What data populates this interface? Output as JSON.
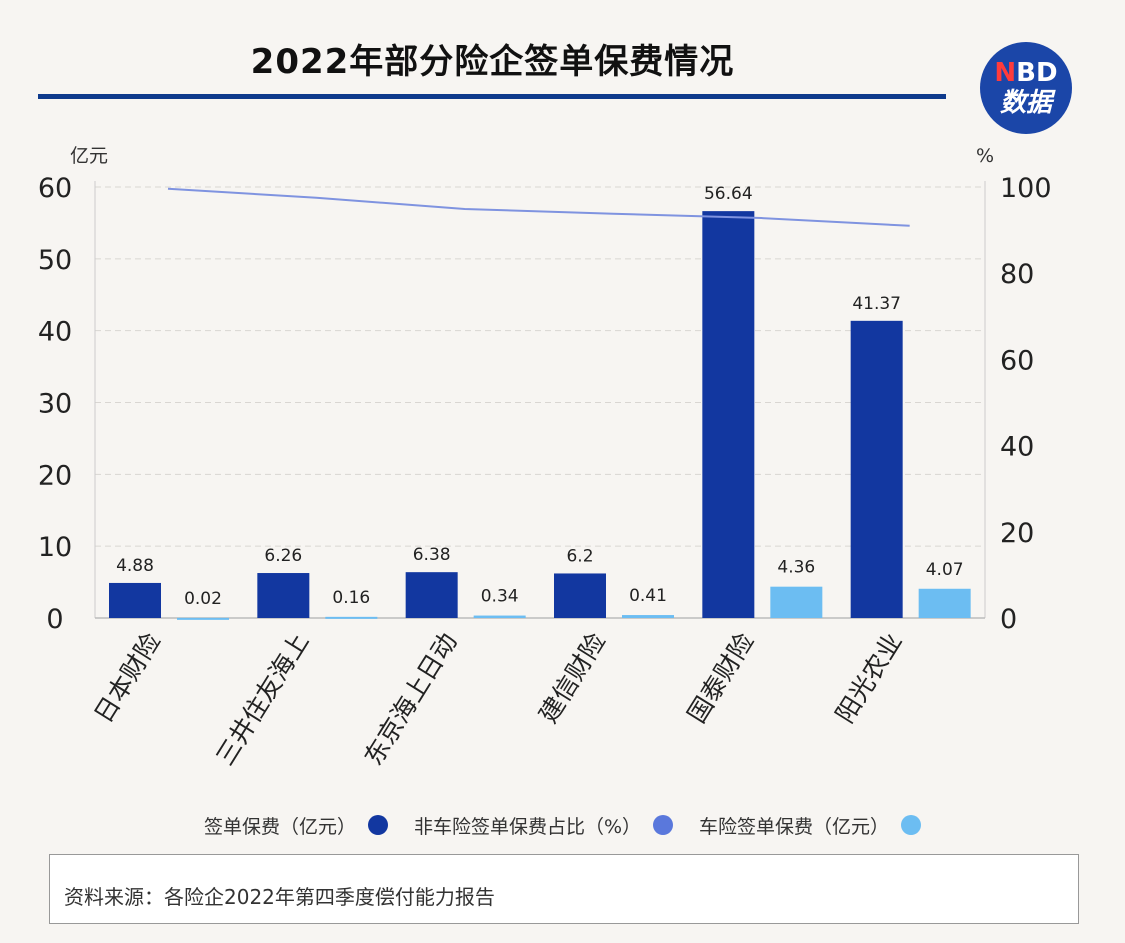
{
  "title": "2022年部分险企签单保费情况",
  "logo": {
    "line1_n": "N",
    "line1_rest": "BD",
    "line2": "数据"
  },
  "chart_data": {
    "type": "bar",
    "categories": [
      "日本财险",
      "三井住友海上",
      "东京海上日动",
      "建信财险",
      "国泰财险",
      "阳光农业"
    ],
    "left_axis": {
      "unit": "亿元",
      "ticks": [
        0,
        10,
        20,
        30,
        40,
        50,
        60
      ],
      "range": [
        0,
        60
      ]
    },
    "right_axis": {
      "unit": "%",
      "ticks": [
        0,
        20,
        40,
        60,
        80,
        100
      ],
      "range": [
        0,
        100
      ]
    },
    "grid": true,
    "series": [
      {
        "name": "签单保费（亿元）",
        "kind": "bar",
        "color": "#1237a0",
        "values": [
          4.88,
          6.26,
          6.38,
          6.2,
          56.64,
          41.37
        ],
        "labels": [
          "4.88",
          "6.26",
          "6.38",
          "6.2",
          "56.64",
          "41.37"
        ]
      },
      {
        "name": "非车险签单保费占比（%）",
        "kind": "line",
        "axis": "right",
        "color": "#7f93e0",
        "values": [
          99.6,
          97.5,
          94.9,
          93.8,
          92.8,
          91.0
        ]
      },
      {
        "name": "车险签单保费（亿元）",
        "kind": "bar",
        "color": "#6cbdf2",
        "values": [
          0.02,
          0.16,
          0.34,
          0.41,
          4.36,
          4.07
        ],
        "labels": [
          "0.02",
          "0.16",
          "0.34",
          "0.41",
          "4.36",
          "4.07"
        ]
      }
    ],
    "legend": {
      "placement": "bottom",
      "items": [
        {
          "label": "签单保费（亿元）",
          "color": "#1237a0"
        },
        {
          "label": "非车险签单保费占比（%）",
          "color": "#5a78dc"
        },
        {
          "label": "车险签单保费（亿元）",
          "color": "#6cbdf2"
        }
      ]
    }
  },
  "source": "资料来源：各险企2022年第四季度偿付能力报告"
}
